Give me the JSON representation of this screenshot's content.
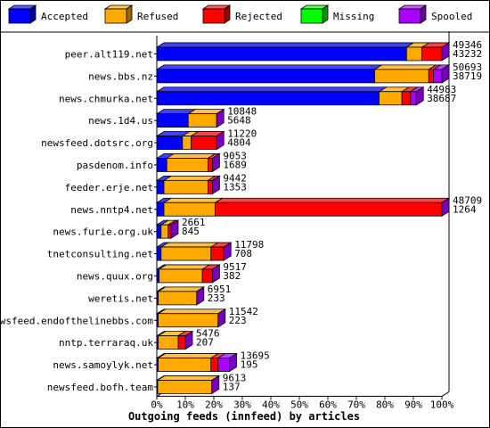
{
  "chart_data": {
    "type": "bar",
    "orientation": "horizontal",
    "stacked": true,
    "normalized_percent": true,
    "xlabel": "Outgoing feeds (innfeed) by articles",
    "xlim": [
      0,
      100
    ],
    "x_ticks": [
      "0%",
      "10%",
      "20%",
      "30%",
      "40%",
      "50%",
      "60%",
      "70%",
      "80%",
      "90%",
      "100%"
    ],
    "legend_position": "top",
    "series": [
      {
        "name": "Accepted",
        "color": "#0000ff"
      },
      {
        "name": "Refused",
        "color": "#ffaa00"
      },
      {
        "name": "Rejected",
        "color": "#ff0000"
      },
      {
        "name": "Missing",
        "color": "#00ff00"
      },
      {
        "name": "Spooled",
        "color": "#aa00ff"
      }
    ],
    "categories": [
      {
        "name": "peer.alt119.net",
        "total": "49346",
        "accepted_count": "43232",
        "pct": [
          87.6,
          5.4,
          7.0,
          0,
          0
        ]
      },
      {
        "name": "news.bbs.nz",
        "total": "50693",
        "accepted_count": "38719",
        "pct": [
          76.4,
          19.0,
          1.6,
          0,
          3.0
        ]
      },
      {
        "name": "news.chmurka.net",
        "total": "44983",
        "accepted_count": "38687",
        "pct": [
          78.0,
          8.0,
          3.0,
          0,
          2.0
        ]
      },
      {
        "name": "news.1d4.us",
        "total": "10848",
        "accepted_count": "5648",
        "pct": [
          11.0,
          10.0,
          0,
          0,
          0
        ]
      },
      {
        "name": "newsfeed.dotsrc.org",
        "total": "11220",
        "accepted_count": "4804",
        "pct": [
          9.0,
          3.0,
          9.0,
          0,
          0
        ]
      },
      {
        "name": "pasdenom.info",
        "total": "9053",
        "accepted_count": "1689",
        "pct": [
          3.5,
          14.5,
          1.5,
          0,
          0
        ]
      },
      {
        "name": "feeder.erje.net",
        "total": "9442",
        "accepted_count": "1353",
        "pct": [
          2.5,
          15.5,
          1.5,
          0,
          0
        ]
      },
      {
        "name": "news.nntp4.net",
        "total": "48709",
        "accepted_count": "1264",
        "pct": [
          2.5,
          18.0,
          79.5,
          0,
          0
        ]
      },
      {
        "name": "news.furie.org.uk",
        "total": "2661",
        "accepted_count": "845",
        "pct": [
          1.5,
          2.5,
          1.0,
          0,
          0
        ]
      },
      {
        "name": "tnetconsulting.net",
        "total": "11798",
        "accepted_count": "708",
        "pct": [
          1.5,
          17.5,
          4.5,
          0,
          0
        ]
      },
      {
        "name": "news.quux.org",
        "total": "9517",
        "accepted_count": "382",
        "pct": [
          0.8,
          15.2,
          3.5,
          0,
          0
        ]
      },
      {
        "name": "weretis.net",
        "total": "6951",
        "accepted_count": "233",
        "pct": [
          0.5,
          13.5,
          0,
          0,
          0
        ]
      },
      {
        "name": "newsfeed.endofthelinebbs.com",
        "total": "11542",
        "accepted_count": "223",
        "pct": [
          0.5,
          21.0,
          0,
          0,
          0
        ]
      },
      {
        "name": "nntp.terraraq.uk",
        "total": "5476",
        "accepted_count": "207",
        "pct": [
          0.5,
          7.0,
          2.5,
          0,
          0
        ]
      },
      {
        "name": "news.samoylyk.net",
        "total": "13695",
        "accepted_count": "195",
        "pct": [
          0.5,
          18.5,
          2.5,
          0,
          4.0
        ]
      },
      {
        "name": "newsfeed.bofh.team",
        "total": "9613",
        "accepted_count": "137",
        "pct": [
          0.3,
          19.0,
          0,
          0,
          0
        ]
      }
    ]
  }
}
